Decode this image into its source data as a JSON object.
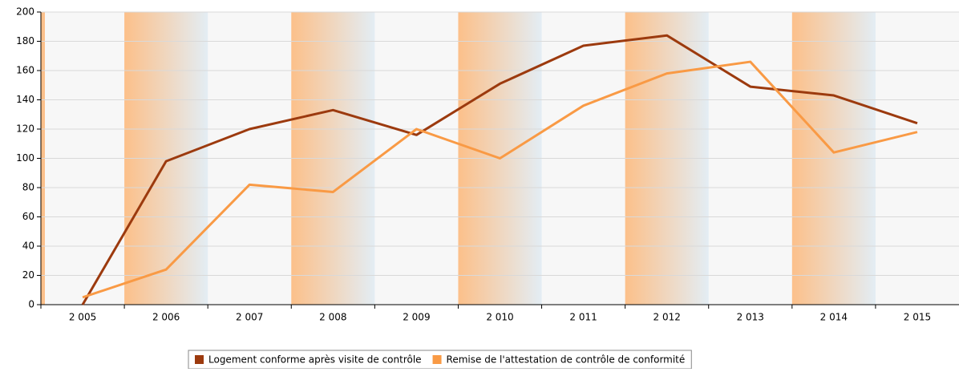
{
  "chart_data": {
    "type": "line",
    "categories": [
      "2 005",
      "2 006",
      "2 007",
      "2 008",
      "2 009",
      "2 010",
      "2 011",
      "2 012",
      "2 013",
      "2 014",
      "2 015"
    ],
    "series": [
      {
        "name": "Logement conforme après visite de contrôle",
        "color": "#9c3a0e",
        "values": [
          0,
          98,
          120,
          133,
          116,
          151,
          177,
          184,
          149,
          143,
          124
        ]
      },
      {
        "name": "Remise de l'attestation de contrôle de conformité",
        "color": "#f99a45",
        "values": [
          5,
          24,
          82,
          77,
          120,
          100,
          136,
          158,
          166,
          104,
          118
        ]
      }
    ],
    "ylim": [
      0,
      200
    ],
    "yticks": [
      0,
      20,
      40,
      60,
      80,
      100,
      120,
      140,
      160,
      180,
      200
    ],
    "grid": true,
    "legend": "bottom"
  }
}
